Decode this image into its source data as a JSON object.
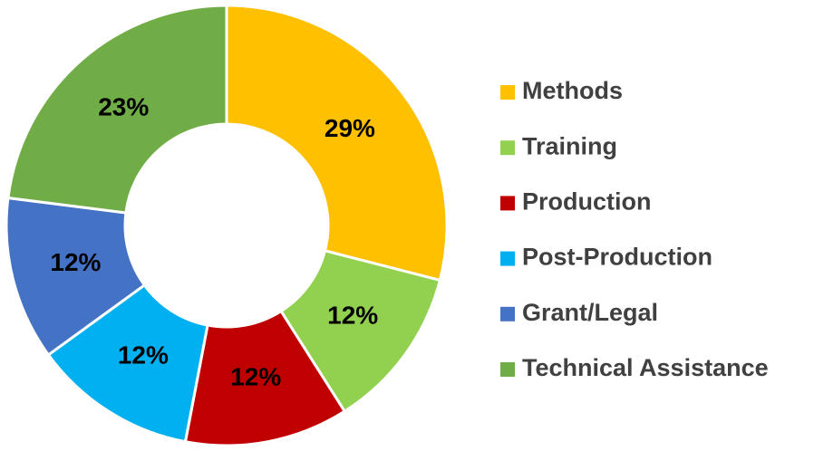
{
  "chart_data": {
    "type": "pie",
    "categories": [
      "Methods",
      "Training",
      "Production",
      "Post-Production",
      "Grant/Legal",
      "Technical Assistance"
    ],
    "values": [
      29,
      12,
      12,
      12,
      12,
      23
    ],
    "value_labels": [
      "29%",
      "12%",
      "12%",
      "12%",
      "12%",
      "23%"
    ],
    "colors": [
      "#FFC000",
      "#92D050",
      "#C00000",
      "#00B0F0",
      "#4472C4",
      "#70AD47"
    ],
    "legend": "right"
  }
}
